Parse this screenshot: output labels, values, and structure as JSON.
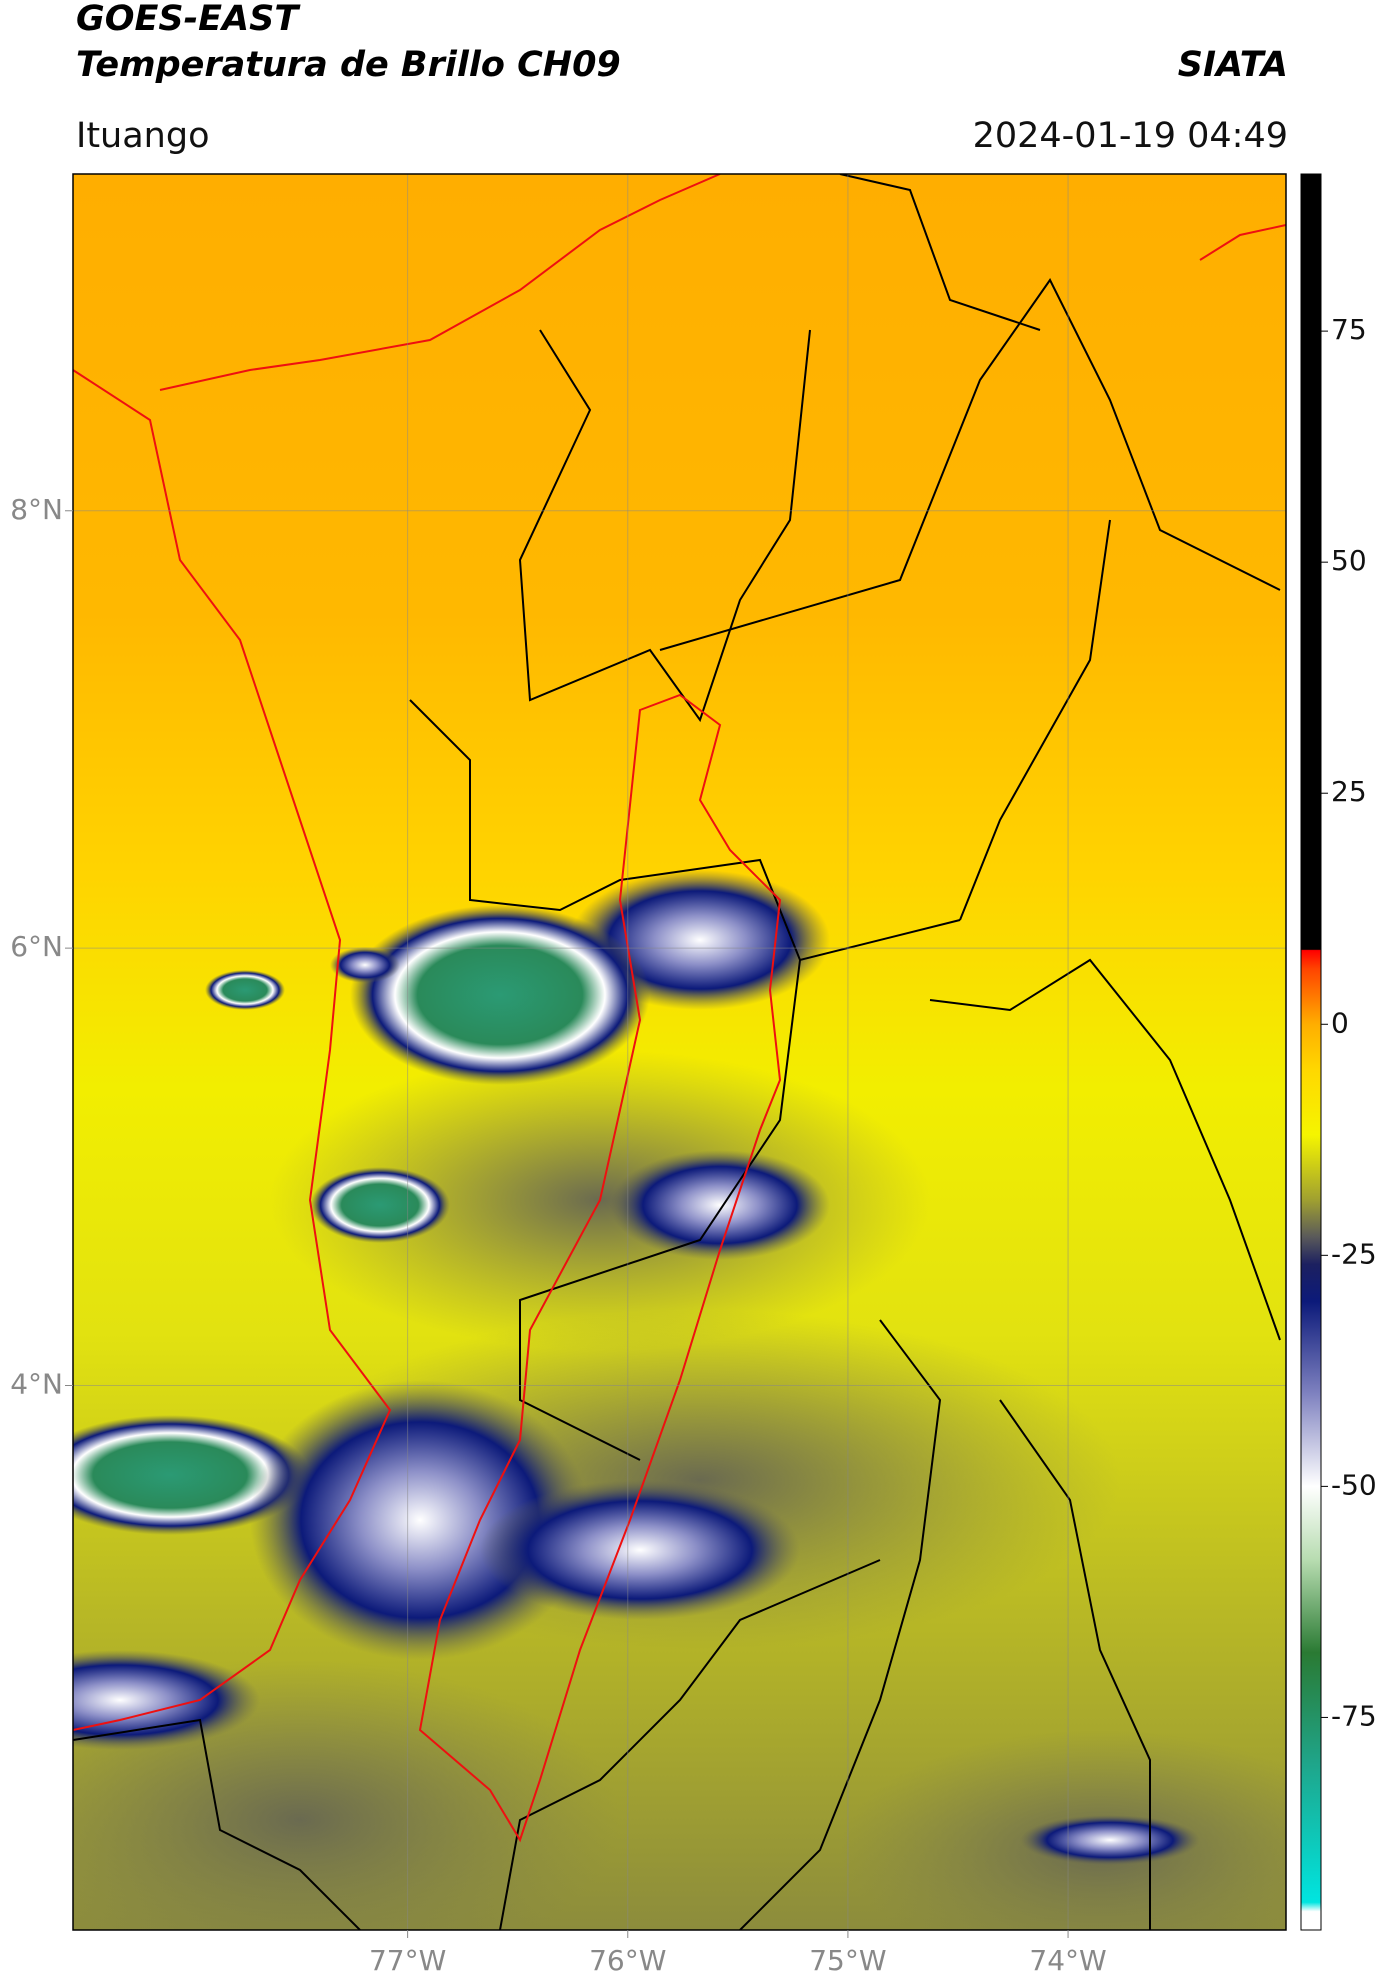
{
  "chart_data": {
    "type": "map",
    "title": "GOES-EAST",
    "subtitle": "Temperatura de Brillo CH09",
    "source": "SIATA",
    "location": "Ituango",
    "datetime": "2024-01-19 04:49",
    "xlim": [
      -78.52,
      -73.01
    ],
    "ylim": [
      1.51,
      9.54
    ],
    "xticks": [
      {
        "value": -77,
        "label": "77°W"
      },
      {
        "value": -76,
        "label": "76°W"
      },
      {
        "value": -75,
        "label": "75°W"
      },
      {
        "value": -74,
        "label": "74°W"
      }
    ],
    "yticks": [
      {
        "value": 8,
        "label": "8°N"
      },
      {
        "value": 6,
        "label": "6°N"
      },
      {
        "value": 4,
        "label": "4°N"
      }
    ],
    "grid": true,
    "colorbar": {
      "lim": [
        -98,
        92
      ],
      "ticks": [
        75,
        50,
        25,
        0,
        -25,
        -50,
        -75
      ],
      "stops": [
        {
          "value": -98,
          "color": "#ffffff"
        },
        {
          "value": -96,
          "color": "#ffffff"
        },
        {
          "value": -95,
          "color": "#00e5e0"
        },
        {
          "value": -80,
          "color": "#1fa58a"
        },
        {
          "value": -68,
          "color": "#2a7a33"
        },
        {
          "value": -58,
          "color": "#b7dcb0"
        },
        {
          "value": -50,
          "color": "#ffffff"
        },
        {
          "value": -40,
          "color": "#7f82c0"
        },
        {
          "value": -30,
          "color": "#0c1a7a"
        },
        {
          "value": -26,
          "color": "#1c2060"
        },
        {
          "value": -23,
          "color": "#5a5a5a"
        },
        {
          "value": -19,
          "color": "#a0a030"
        },
        {
          "value": -12,
          "color": "#f5f500"
        },
        {
          "value": -5,
          "color": "#ffd800"
        },
        {
          "value": 0,
          "color": "#ffae00"
        },
        {
          "value": 6,
          "color": "#ff4400"
        },
        {
          "value": 8,
          "color": "#ff0000"
        },
        {
          "value": 8.1,
          "color": "#000000"
        },
        {
          "value": 92,
          "color": "#000000"
        }
      ]
    }
  }
}
